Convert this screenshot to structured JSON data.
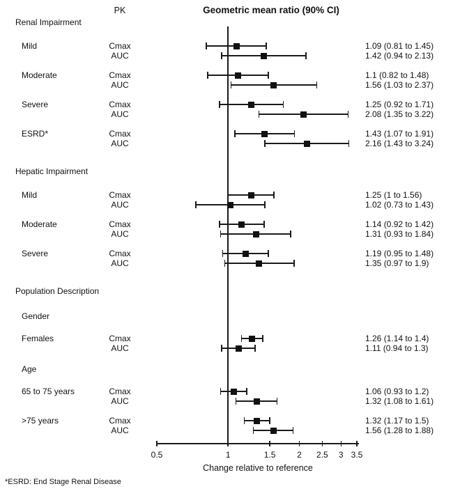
{
  "header": {
    "pk_label": "PK"
  },
  "chart_data": {
    "type": "forest",
    "title": "Geometric mean ratio (90% CI)",
    "xlabel": "Change relative to reference",
    "x_scale": "log",
    "xlim": [
      0.5,
      3.5
    ],
    "x_ticks": [
      0.5,
      1,
      1.5,
      2,
      2.5,
      3,
      3.5
    ],
    "reference_line": 1,
    "marker_color": "#111111",
    "line_color": "#1a1a1a",
    "footnote": "*ESRD: End Stage Renal Disease",
    "blocks": [
      {
        "kind": "section",
        "label": "Renal Impairment"
      },
      {
        "kind": "item",
        "label": "Mild",
        "rows": [
          {
            "pk": "Cmax",
            "est": 1.09,
            "lo": 0.81,
            "hi": 1.45,
            "ci_text": "1.09 (0.81 to 1.45)"
          },
          {
            "pk": "AUC",
            "est": 1.42,
            "lo": 0.94,
            "hi": 2.13,
            "ci_text": "1.42 (0.94 to 2.13)"
          }
        ]
      },
      {
        "kind": "item",
        "label": "Moderate",
        "rows": [
          {
            "pk": "Cmax",
            "est": 1.1,
            "lo": 0.82,
            "hi": 1.48,
            "ci_text": "1.1 (0.82 to 1.48)"
          },
          {
            "pk": "AUC",
            "est": 1.56,
            "lo": 1.03,
            "hi": 2.37,
            "ci_text": "1.56 (1.03 to 2.37)"
          }
        ]
      },
      {
        "kind": "item",
        "label": "Severe",
        "rows": [
          {
            "pk": "Cmax",
            "est": 1.25,
            "lo": 0.92,
            "hi": 1.71,
            "ci_text": "1.25 (0.92 to 1.71)"
          },
          {
            "pk": "AUC",
            "est": 2.08,
            "lo": 1.35,
            "hi": 3.22,
            "ci_text": "2.08 (1.35 to 3.22)"
          }
        ]
      },
      {
        "kind": "item",
        "label": "ESRD*",
        "rows": [
          {
            "pk": "Cmax",
            "est": 1.43,
            "lo": 1.07,
            "hi": 1.91,
            "ci_text": "1.43 (1.07 to 1.91)"
          },
          {
            "pk": "AUC",
            "est": 2.16,
            "lo": 1.43,
            "hi": 3.24,
            "ci_text": "2.16 (1.43 to 3.24)"
          }
        ]
      },
      {
        "kind": "section",
        "label": "Hepatic Impairment"
      },
      {
        "kind": "item",
        "label": "Mild",
        "rows": [
          {
            "pk": "Cmax",
            "est": 1.25,
            "lo": 1.0,
            "hi": 1.56,
            "ci_text": "1.25 (1 to 1.56)"
          },
          {
            "pk": "AUC",
            "est": 1.02,
            "lo": 0.73,
            "hi": 1.43,
            "ci_text": "1.02 (0.73 to 1.43)"
          }
        ]
      },
      {
        "kind": "item",
        "label": "Moderate",
        "rows": [
          {
            "pk": "Cmax",
            "est": 1.14,
            "lo": 0.92,
            "hi": 1.42,
            "ci_text": "1.14 (0.92 to 1.42)"
          },
          {
            "pk": "AUC",
            "est": 1.31,
            "lo": 0.93,
            "hi": 1.84,
            "ci_text": "1.31 (0.93 to 1.84)"
          }
        ]
      },
      {
        "kind": "item",
        "label": "Severe",
        "rows": [
          {
            "pk": "Cmax",
            "est": 1.19,
            "lo": 0.95,
            "hi": 1.48,
            "ci_text": "1.19 (0.95 to 1.48)"
          },
          {
            "pk": "AUC",
            "est": 1.35,
            "lo": 0.97,
            "hi": 1.9,
            "ci_text": "1.35 (0.97 to 1.9)"
          }
        ]
      },
      {
        "kind": "section",
        "label": "Population Description"
      },
      {
        "kind": "subsection",
        "label": "Gender"
      },
      {
        "kind": "item",
        "label": "Females",
        "rows": [
          {
            "pk": "Cmax",
            "est": 1.26,
            "lo": 1.14,
            "hi": 1.4,
            "ci_text": "1.26 (1.14 to 1.4)"
          },
          {
            "pk": "AUC",
            "est": 1.11,
            "lo": 0.94,
            "hi": 1.3,
            "ci_text": "1.11 (0.94 to 1.3)"
          }
        ]
      },
      {
        "kind": "subsection",
        "label": "Age"
      },
      {
        "kind": "item",
        "label": "65 to 75 years",
        "rows": [
          {
            "pk": "Cmax",
            "est": 1.06,
            "lo": 0.93,
            "hi": 1.2,
            "ci_text": "1.06 (0.93 to 1.2)"
          },
          {
            "pk": "AUC",
            "est": 1.32,
            "lo": 1.08,
            "hi": 1.61,
            "ci_text": "1.32 (1.08 to 1.61)"
          }
        ]
      },
      {
        "kind": "item",
        "label": ">75 years",
        "rows": [
          {
            "pk": "Cmax",
            "est": 1.32,
            "lo": 1.17,
            "hi": 1.5,
            "ci_text": "1.32 (1.17 to 1.5)"
          },
          {
            "pk": "AUC",
            "est": 1.56,
            "lo": 1.28,
            "hi": 1.88,
            "ci_text": "1.56 (1.28 to 1.88)"
          }
        ]
      }
    ]
  }
}
